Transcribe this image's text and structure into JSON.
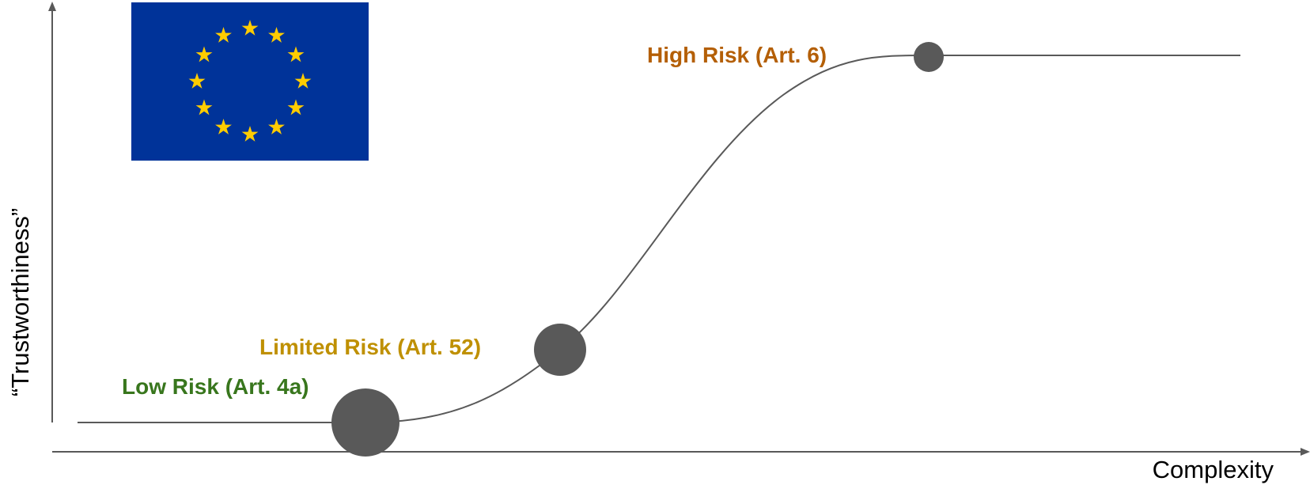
{
  "axes": {
    "x_label": "Complexity",
    "y_label": "“Trustworthiness”"
  },
  "risk_levels": [
    {
      "label": "Low Risk (Art. 4a)",
      "color": "#38761d"
    },
    {
      "label": "Limited Risk (Art. 52)",
      "color": "#bf9000"
    },
    {
      "label": "High Risk (Art. 6)",
      "color": "#b45f06"
    }
  ],
  "flag": {
    "icon": "eu-flag-icon",
    "background_color": "#003399",
    "star_color": "#ffcc00",
    "star_count": 12
  },
  "line_color": "#595959"
}
